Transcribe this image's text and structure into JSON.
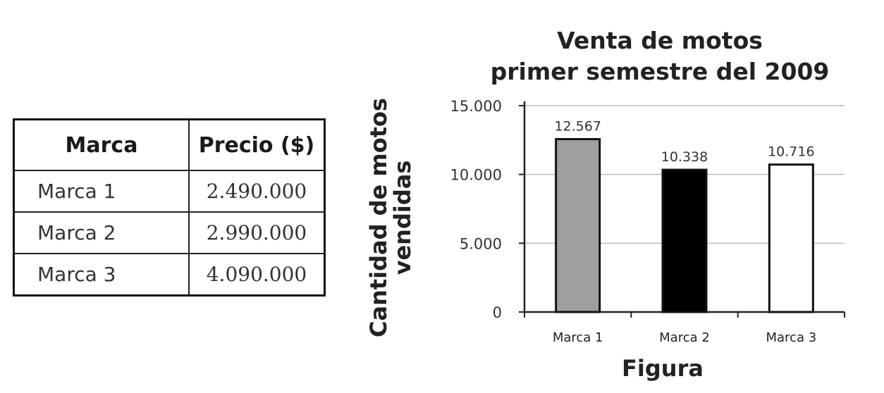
{
  "table": {
    "headers": [
      "Marca",
      "Precio ($)"
    ],
    "rows": [
      [
        "Marca 1",
        "2.490.000"
      ],
      [
        "Marca 2",
        "2.990.000"
      ],
      [
        "Marca 3",
        "4.090.000"
      ]
    ]
  },
  "chart_data": {
    "type": "bar",
    "title_lines": [
      "Venta de motos",
      "primer semestre del 2009"
    ],
    "ylabel_lines": [
      "Cantidad de motos",
      "vendidas"
    ],
    "xlabel": "Figura",
    "categories": [
      "Marca 1",
      "Marca 2",
      "Marca 3"
    ],
    "values": [
      12567,
      10338,
      10716
    ],
    "data_labels": [
      "12.567",
      "10.338",
      "10.716"
    ],
    "bar_colors": [
      "#a0a0a0",
      "#000000",
      "#ffffff"
    ],
    "ylim": [
      0,
      15000
    ],
    "yticks": [
      0,
      5000,
      10000,
      15000
    ],
    "ytick_labels": [
      "0",
      "5.000",
      "10.000",
      "15.000"
    ],
    "grid": true
  }
}
